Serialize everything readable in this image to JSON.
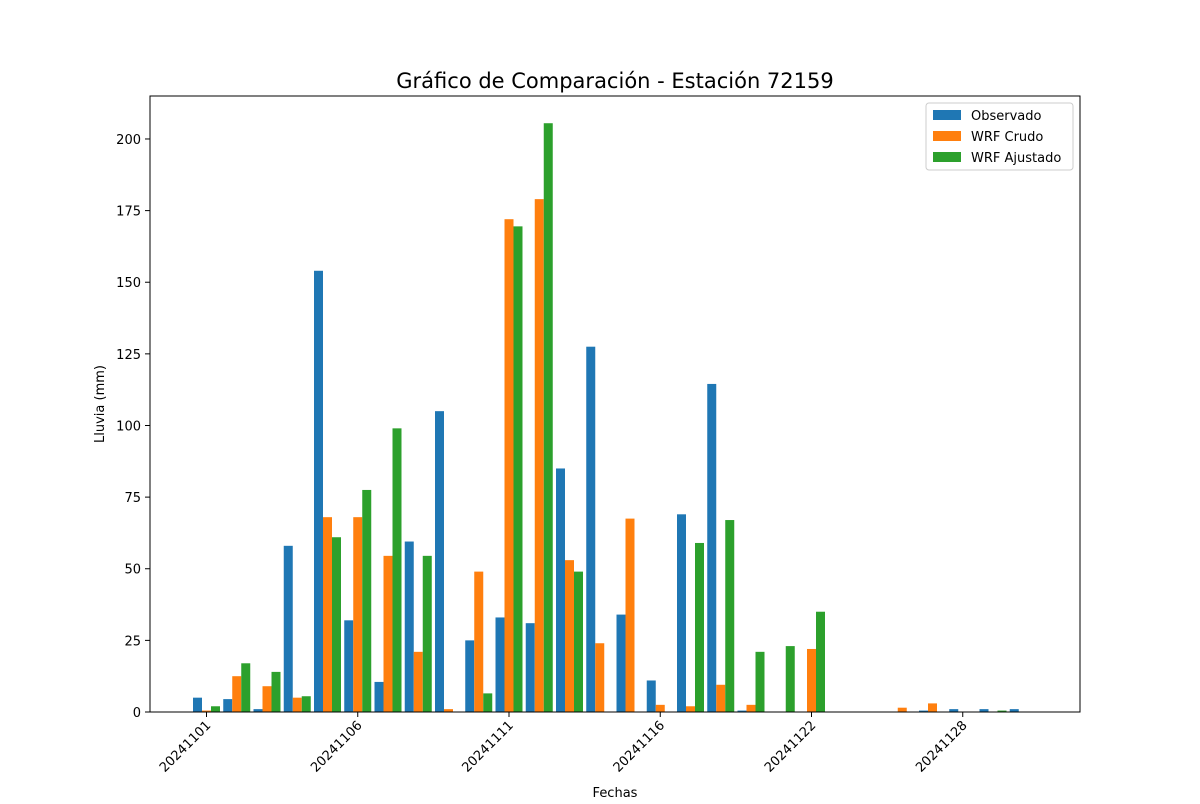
{
  "chart_data": {
    "type": "bar",
    "title": "Gráfico de Comparación - Estación 72159",
    "xlabel": "Fechas",
    "ylabel": "Lluvia (mm)",
    "ylim": [
      0,
      215
    ],
    "yticks": [
      0,
      25,
      50,
      75,
      100,
      125,
      150,
      175,
      200
    ],
    "x_ticks": [
      {
        "label": "20241101",
        "index": 0
      },
      {
        "label": "20241106",
        "index": 5
      },
      {
        "label": "20241111",
        "index": 10
      },
      {
        "label": "20241116",
        "index": 15
      },
      {
        "label": "20241122",
        "index": 20
      },
      {
        "label": "20241128",
        "index": 25
      }
    ],
    "categories_count": 28,
    "legend_position": "upper-right",
    "series": [
      {
        "name": "Observado",
        "color": "#1f77b4",
        "values": [
          5.0,
          4.5,
          1.0,
          58.0,
          154.0,
          32.0,
          10.5,
          59.5,
          105.0,
          25.0,
          33.0,
          31.0,
          85.0,
          127.5,
          34.0,
          11.0,
          69.0,
          114.5,
          0.5,
          0,
          0,
          0,
          0,
          0,
          0.5,
          1.0,
          1.0,
          1.0
        ]
      },
      {
        "name": "WRF Crudo",
        "color": "#ff7f0e",
        "values": [
          0.5,
          12.5,
          9.0,
          5.0,
          68.0,
          68.0,
          54.5,
          21.0,
          1.0,
          49.0,
          172.0,
          179.0,
          53.0,
          24.0,
          67.5,
          2.5,
          2.0,
          9.5,
          2.5,
          0,
          22.0,
          0,
          0,
          1.5,
          3.0,
          0,
          0,
          0
        ]
      },
      {
        "name": "WRF Ajustado",
        "color": "#2ca02c",
        "values": [
          2.0,
          17.0,
          14.0,
          5.5,
          61.0,
          77.5,
          99.0,
          54.5,
          0,
          6.5,
          169.5,
          205.5,
          49.0,
          0,
          0,
          0,
          59.0,
          67.0,
          21.0,
          23.0,
          35.0,
          0,
          0,
          0,
          0,
          0,
          0.5,
          0
        ]
      }
    ]
  }
}
